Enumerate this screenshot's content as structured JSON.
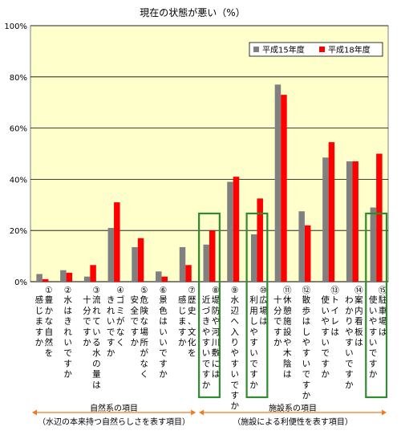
{
  "chart_data": {
    "type": "bar",
    "title": "現在の状態が悪い（%）",
    "y_ticks": [
      "0%",
      "20%",
      "40%",
      "60%",
      "80%",
      "100%"
    ],
    "ylim": [
      0,
      100
    ],
    "grid": true,
    "legend_position": "top-right",
    "series": [
      {
        "name": "平成15年度",
        "color": "#808080",
        "values": [
          3,
          4.5,
          2,
          21,
          13.5,
          4,
          13.5,
          14.5,
          39,
          18.5,
          77,
          27.5,
          48.5,
          47,
          29
        ]
      },
      {
        "name": "平成18年度",
        "color": "#ff0000",
        "values": [
          1,
          3.5,
          6.5,
          31,
          17,
          2,
          6.5,
          20,
          41,
          32.5,
          73,
          22,
          54.5,
          47,
          50
        ]
      }
    ],
    "categories": [
      {
        "number": "①",
        "lines": [
          "豊かな自然を",
          "感じますか"
        ]
      },
      {
        "number": "②",
        "lines": [
          "水はきれいですか"
        ]
      },
      {
        "number": "③",
        "lines": [
          "流れている水の量は",
          "十分ですか"
        ]
      },
      {
        "number": "④",
        "lines": [
          "ゴミがなく",
          "きれいですか"
        ]
      },
      {
        "number": "⑤",
        "lines": [
          "危険な場所がなく",
          "安全ですか"
        ]
      },
      {
        "number": "⑥",
        "lines": [
          "景色はいいですか"
        ]
      },
      {
        "number": "⑦",
        "lines": [
          "歴史、文化を",
          "感じますか"
        ]
      },
      {
        "number": "⑧",
        "lines": [
          "堤防や河川敷には",
          "近づきやすいですか"
        ]
      },
      {
        "number": "⑨",
        "lines": [
          "水辺へ入りやすいですか"
        ]
      },
      {
        "number": "⑩",
        "lines": [
          "広場は",
          "利用しやすいですか"
        ]
      },
      {
        "number": "⑪",
        "lines": [
          "休憩施設や木陰は",
          "十分ですか"
        ]
      },
      {
        "number": "⑫",
        "lines": [
          "散歩はしやすいですか"
        ]
      },
      {
        "number": "⑬",
        "lines": [
          "トイレは",
          "使いやすいですか"
        ]
      },
      {
        "number": "⑭",
        "lines": [
          "案内看板は",
          "わかりやすいですか"
        ]
      },
      {
        "number": "⑮",
        "lines": [
          "駐車場は",
          "使いやすいですか"
        ]
      }
    ],
    "highlighted": [
      7,
      9,
      14
    ],
    "highlight_color": "#2e8b2e",
    "groups": [
      {
        "label": "自然系の項目",
        "sublabel": "（水辺の本来持つ自然らしさを表す項目）",
        "from": 0,
        "to": 6
      },
      {
        "label": "施設系の項目",
        "sublabel": "（施設による利便性を表す項目）",
        "from": 7,
        "to": 14
      }
    ],
    "group_arrow_color": "#f07820",
    "plot_background": "#ffffcc"
  }
}
